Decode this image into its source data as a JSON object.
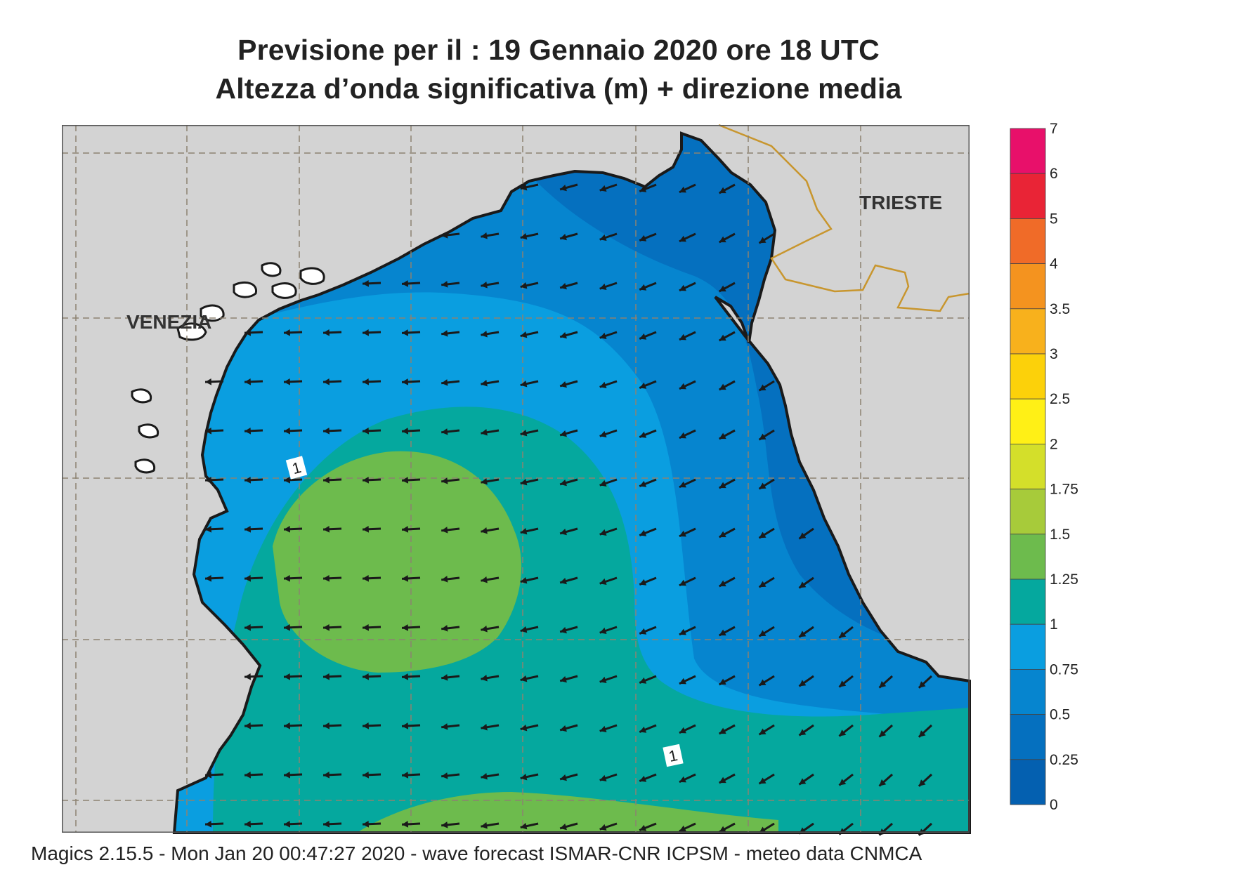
{
  "header": {
    "title_line1": "Previsione per il  :  19  Gennaio  2020   ore 18 UTC",
    "title_line2": "Altezza d’onda significativa (m) + direzione media"
  },
  "map": {
    "labels": {
      "venezia": "VENEZIA",
      "trieste": "TRIESTE",
      "contour_label_1": "1",
      "contour_label_2": "1"
    },
    "arrow_direction": "toward west-southwest",
    "colors": {
      "land": "#d3d3d3",
      "coast": "#1a1a1a",
      "grid": "#8c8271",
      "border": "#c8962e"
    }
  },
  "legend": {
    "unit": "m",
    "labels": [
      "7",
      "6",
      "5",
      "4",
      "3.5",
      "3",
      "2.5",
      "2",
      "1.75",
      "1.5",
      "1.25",
      "1",
      "0.75",
      "0.5",
      "0.25",
      "0"
    ],
    "colors_top_to_bottom": [
      "#e8106a",
      "#e92436",
      "#f06b28",
      "#f4931f",
      "#f8b11c",
      "#fcd10a",
      "#fff016",
      "#d4df2a",
      "#a7cb3a",
      "#6dbb4d",
      "#05a89e",
      "#0a9ee0",
      "#0685cf",
      "#0570bf",
      "#0460b0"
    ]
  },
  "footer": {
    "text": "Magics 2.15.5 - Mon Jan 20 00:47:27 2020 - wave forecast  ISMAR-CNR  ICPSM - meteo data   CNMCA"
  }
}
